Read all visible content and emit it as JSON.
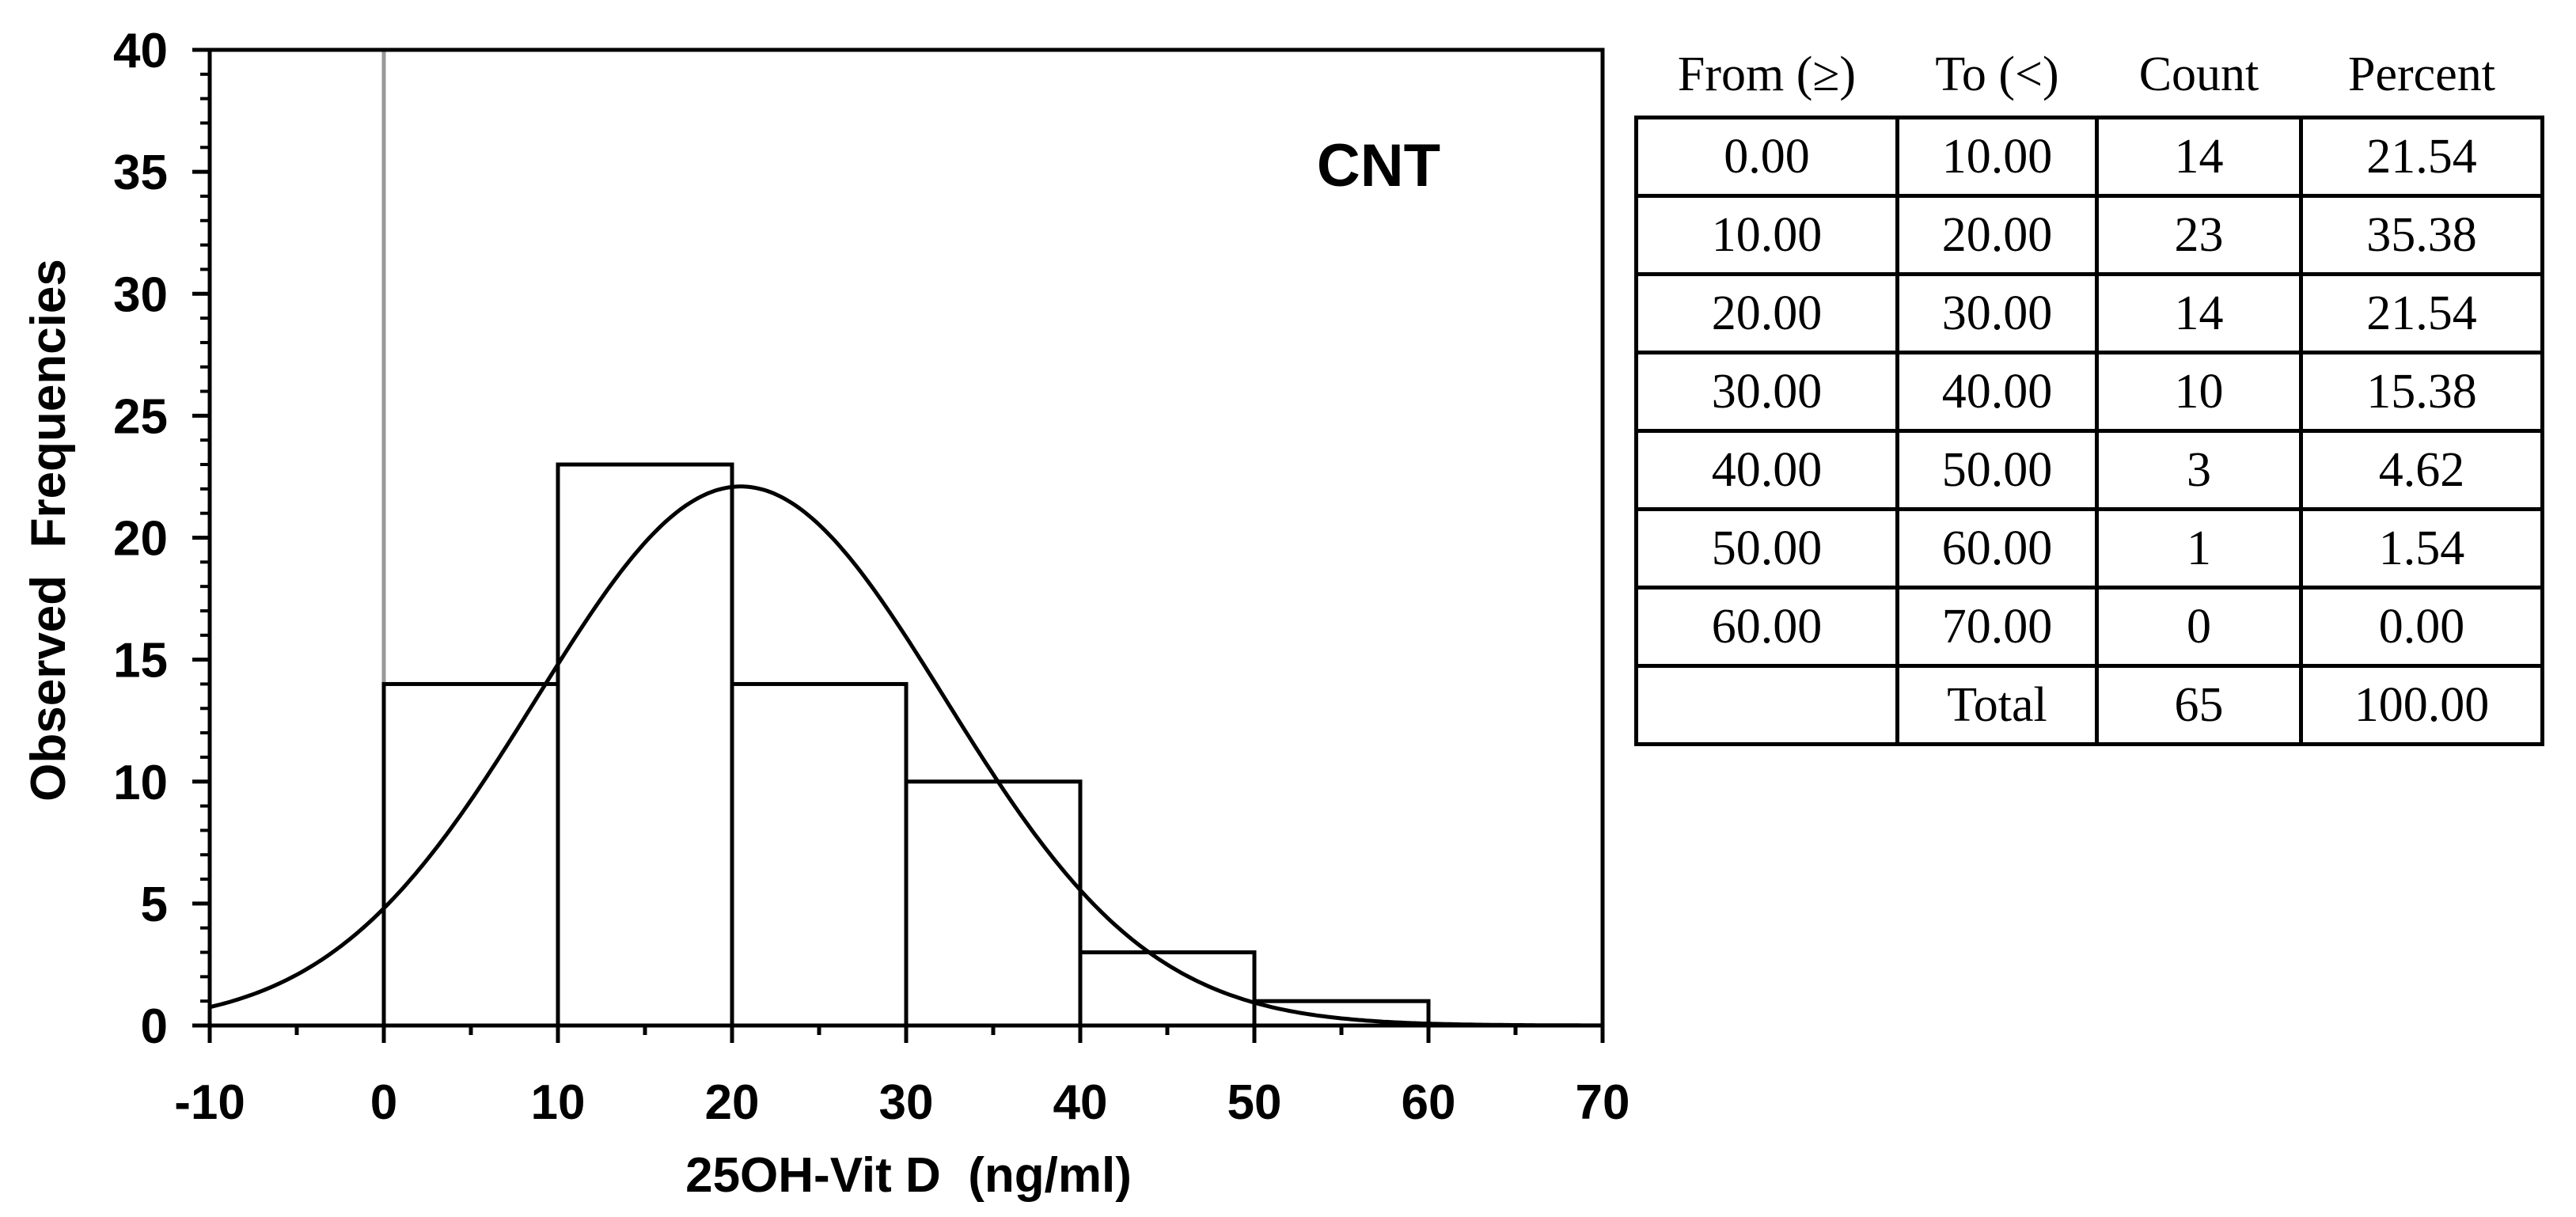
{
  "chart_data": {
    "type": "bar",
    "subtype": "histogram",
    "label": "CNT",
    "xlabel": "25OH-Vit D  (ng/ml)",
    "ylabel": "Observed  Frequencies",
    "xlim": [
      -10,
      70
    ],
    "ylim": [
      0,
      40
    ],
    "x_ticks": [
      "-10",
      "0",
      "10",
      "20",
      "30",
      "40",
      "50",
      "60",
      "70"
    ],
    "y_ticks": [
      "0",
      "5",
      "10",
      "15",
      "20",
      "25",
      "30",
      "35",
      "40"
    ],
    "bins": [
      {
        "from": 0,
        "to": 10,
        "count": 14
      },
      {
        "from": 10,
        "to": 20,
        "count": 23
      },
      {
        "from": 20,
        "to": 30,
        "count": 14
      },
      {
        "from": 30,
        "to": 40,
        "count": 10
      },
      {
        "from": 40,
        "to": 50,
        "count": 3
      },
      {
        "from": 50,
        "to": 60,
        "count": 1
      },
      {
        "from": 60,
        "to": 70,
        "count": 0
      }
    ],
    "normal_curve": {
      "peak_x": 20.5,
      "peak_y": 22.1,
      "n": 65,
      "bin_width": 10
    },
    "grid": false
  },
  "table": {
    "headers": [
      "From (≥)",
      "To (<)",
      "Count",
      "Percent"
    ],
    "rows": [
      [
        "0.00",
        "10.00",
        "14",
        "21.54"
      ],
      [
        "10.00",
        "20.00",
        "23",
        "35.38"
      ],
      [
        "20.00",
        "30.00",
        "14",
        "21.54"
      ],
      [
        "30.00",
        "40.00",
        "10",
        "15.38"
      ],
      [
        "40.00",
        "50.00",
        "3",
        "4.62"
      ],
      [
        "50.00",
        "60.00",
        "1",
        "1.54"
      ],
      [
        "60.00",
        "70.00",
        "0",
        "0.00"
      ],
      [
        "",
        "Total",
        "65",
        "100.00"
      ]
    ]
  }
}
